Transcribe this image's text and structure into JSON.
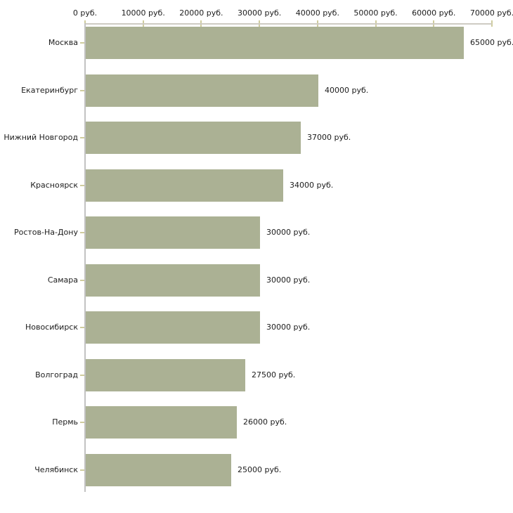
{
  "chart_data": {
    "type": "bar",
    "orientation": "horizontal",
    "title": "",
    "xlabel": "",
    "ylabel": "",
    "unit": "руб.",
    "categories": [
      "Москва",
      "Екатеринбург",
      "Нижний Новгород",
      "Красноярск",
      "Ростов-На-Дону",
      "Самара",
      "Новосибирск",
      "Волгоград",
      "Пермь",
      "Челябинск"
    ],
    "values": [
      65000,
      40000,
      37000,
      34000,
      30000,
      30000,
      30000,
      27500,
      26000,
      25000
    ],
    "value_labels": [
      "65000 руб.",
      "40000 руб.",
      "37000 руб.",
      "34000 руб.",
      "30000 руб.",
      "30000 руб.",
      "30000 руб.",
      "27500 руб.",
      "26000 руб.",
      "25000 руб."
    ],
    "x_ticks": [
      0,
      10000,
      20000,
      30000,
      40000,
      50000,
      60000,
      70000
    ],
    "x_tick_labels": [
      "0 руб.",
      "10000 руб.",
      "20000 руб.",
      "30000 руб.",
      "40000 руб.",
      "50000 руб.",
      "60000 руб.",
      "70000 руб."
    ],
    "xlim": [
      0,
      70000
    ],
    "grid": false,
    "legend": false,
    "colors": {
      "bar": "#abb194",
      "x_axis_line": "#cecbc3",
      "y_axis_line": "#c2c2c2",
      "tick_mark": "#cfcc9e",
      "text": "#1c1c1c",
      "background": "#ffffff"
    }
  }
}
